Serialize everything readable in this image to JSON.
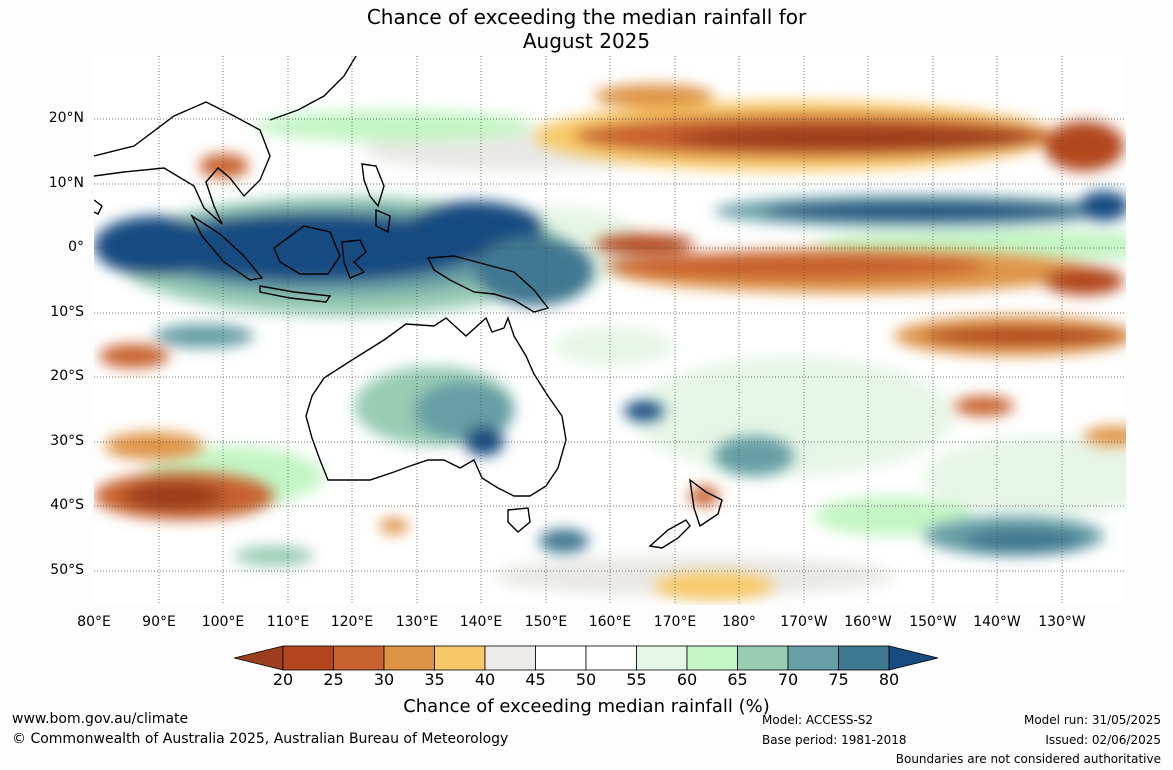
{
  "title": {
    "line1": "Chance of exceeding the median rainfall for",
    "line2": "August 2025"
  },
  "lat_labels": [
    "20°N",
    "10°N",
    "0°",
    "10°S",
    "20°S",
    "30°S",
    "40°S",
    "50°S"
  ],
  "lon_labels": [
    "80°E",
    "90°E",
    "100°E",
    "110°E",
    "120°E",
    "130°E",
    "140°E",
    "150°E",
    "160°E",
    "170°E",
    "180°",
    "170°W",
    "160°W",
    "150°W",
    "140°W",
    "130°W"
  ],
  "colorbar": {
    "ticks": [
      "20",
      "25",
      "30",
      "35",
      "40",
      "45",
      "50",
      "55",
      "60",
      "65",
      "70",
      "75",
      "80"
    ],
    "colors": [
      "#9c3d1e",
      "#b3461f",
      "#c8622e",
      "#de9446",
      "#f8c968",
      "#ecebe7",
      "#ffffff",
      "#ffffff",
      "#e6f6e6",
      "#c4f5c5",
      "#98ccb3",
      "#669fa5",
      "#3f7891",
      "#174b81"
    ],
    "label": "Chance of exceeding median rainfall (%)"
  },
  "footer": {
    "website": "www.bom.gov.au/climate",
    "copyright": "© Commonwealth of Australia 2025, Australian Bureau of Meteorology",
    "model": "Model: ACCESS-S2",
    "base_period": "Base period: 1981-2018",
    "model_run": "Model run: 31/05/2025",
    "issued": "Issued: 02/06/2025",
    "disclaimer": "Boundaries are not considered authoritative"
  }
}
